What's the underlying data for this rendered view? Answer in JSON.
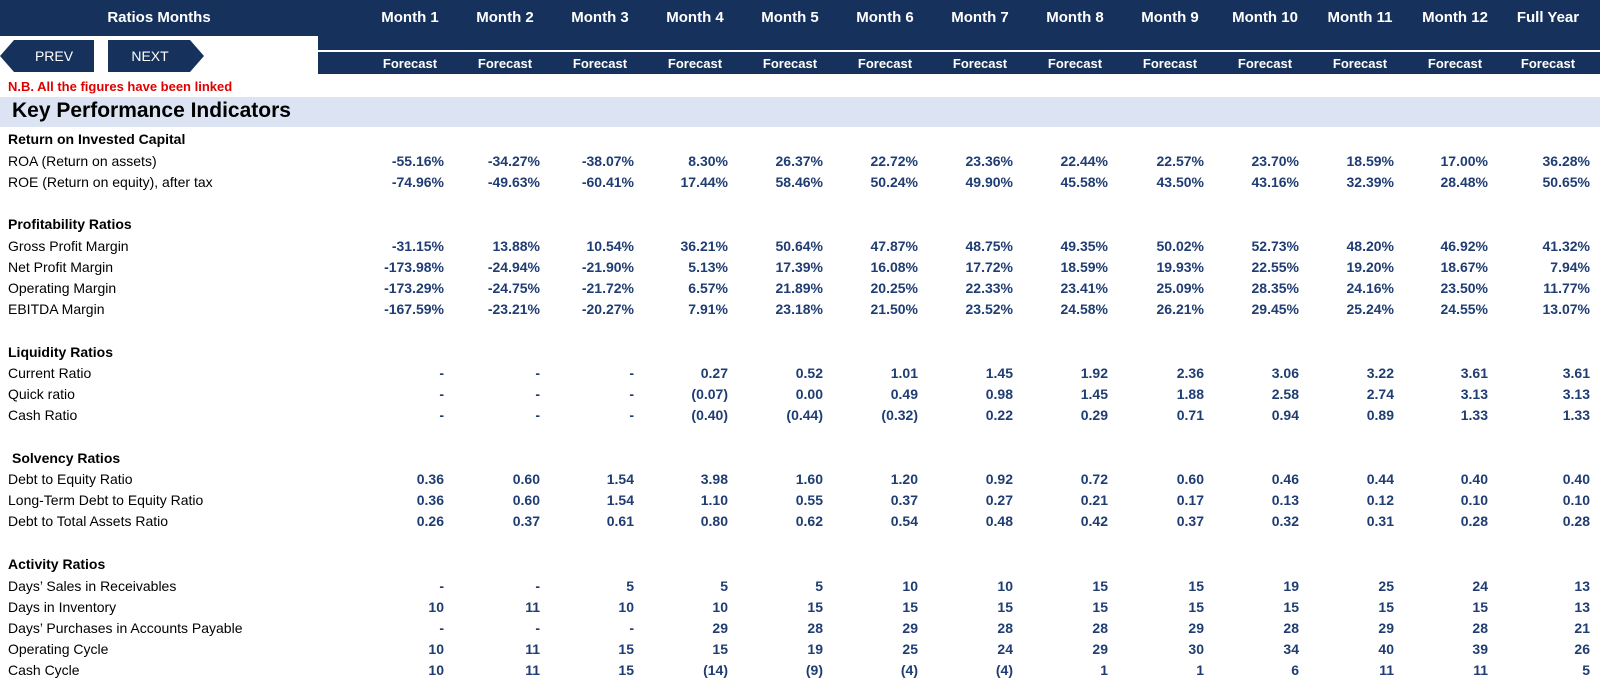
{
  "header": {
    "label": "Ratios Months",
    "columns": [
      "Month 1",
      "Month 2",
      "Month 3",
      "Month 4",
      "Month 5",
      "Month 6",
      "Month 7",
      "Month 8",
      "Month 9",
      "Month 10",
      "Month 11",
      "Month 12",
      "Full Year"
    ],
    "subheaders": [
      "Forecast",
      "Forecast",
      "Forecast",
      "Forecast",
      "Forecast",
      "Forecast",
      "Forecast",
      "Forecast",
      "Forecast",
      "Forecast",
      "Forecast",
      "Forecast",
      "Forecast"
    ]
  },
  "nav": {
    "prev": "PREV",
    "next": "NEXT"
  },
  "note": "N.B. All the figures have been linked",
  "kpi_title": "Key Performance Indicators",
  "sections": {
    "roic": {
      "title": "Return on Invested Capital",
      "rows": [
        {
          "label": "ROA (Return on assets)",
          "values": [
            "-55.16%",
            "-34.27%",
            "-38.07%",
            "8.30%",
            "26.37%",
            "22.72%",
            "23.36%",
            "22.44%",
            "22.57%",
            "23.70%",
            "18.59%",
            "17.00%",
            "36.28%"
          ]
        },
        {
          "label": "ROE (Return on equity), after tax",
          "values": [
            "-74.96%",
            "-49.63%",
            "-60.41%",
            "17.44%",
            "58.46%",
            "50.24%",
            "49.90%",
            "45.58%",
            "43.50%",
            "43.16%",
            "32.39%",
            "28.48%",
            "50.65%"
          ]
        }
      ]
    },
    "profitability": {
      "title": "Profitability Ratios",
      "rows": [
        {
          "label": "Gross Profit Margin",
          "values": [
            "-31.15%",
            "13.88%",
            "10.54%",
            "36.21%",
            "50.64%",
            "47.87%",
            "48.75%",
            "49.35%",
            "50.02%",
            "52.73%",
            "48.20%",
            "46.92%",
            "41.32%"
          ]
        },
        {
          "label": "Net Profit Margin",
          "values": [
            "-173.98%",
            "-24.94%",
            "-21.90%",
            "5.13%",
            "17.39%",
            "16.08%",
            "17.72%",
            "18.59%",
            "19.93%",
            "22.55%",
            "19.20%",
            "18.67%",
            "7.94%"
          ]
        },
        {
          "label": "Operating Margin",
          "values": [
            "-173.29%",
            "-24.75%",
            "-21.72%",
            "6.57%",
            "21.89%",
            "20.25%",
            "22.33%",
            "23.41%",
            "25.09%",
            "28.35%",
            "24.16%",
            "23.50%",
            "11.77%"
          ]
        },
        {
          "label": "EBITDA Margin",
          "values": [
            "-167.59%",
            "-23.21%",
            "-20.27%",
            "7.91%",
            "23.18%",
            "21.50%",
            "23.52%",
            "24.58%",
            "26.21%",
            "29.45%",
            "25.24%",
            "24.55%",
            "13.07%"
          ]
        }
      ]
    },
    "liquidity": {
      "title": "Liquidity Ratios",
      "rows": [
        {
          "label": "Current Ratio",
          "values": [
            "-",
            "-",
            "-",
            "0.27",
            "0.52",
            "1.01",
            "1.45",
            "1.92",
            "2.36",
            "3.06",
            "3.22",
            "3.61",
            "3.61"
          ]
        },
        {
          "label": "Quick ratio",
          "values": [
            "-",
            "-",
            "-",
            "(0.07)",
            "0.00",
            "0.49",
            "0.98",
            "1.45",
            "1.88",
            "2.58",
            "2.74",
            "3.13",
            "3.13"
          ]
        },
        {
          "label": "Cash Ratio",
          "values": [
            "-",
            "-",
            "-",
            "(0.40)",
            "(0.44)",
            "(0.32)",
            "0.22",
            "0.29",
            "0.71",
            "0.94",
            "0.89",
            "1.33",
            "1.33"
          ]
        }
      ]
    },
    "solvency": {
      "title": "Solvency Ratios",
      "rows": [
        {
          "label": "Debt to Equity Ratio",
          "values": [
            "0.36",
            "0.60",
            "1.54",
            "3.98",
            "1.60",
            "1.20",
            "0.92",
            "0.72",
            "0.60",
            "0.46",
            "0.44",
            "0.40",
            "0.40"
          ]
        },
        {
          "label": "Long-Term Debt to Equity Ratio",
          "values": [
            "0.36",
            "0.60",
            "1.54",
            "1.10",
            "0.55",
            "0.37",
            "0.27",
            "0.21",
            "0.17",
            "0.13",
            "0.12",
            "0.10",
            "0.10"
          ]
        },
        {
          "label": "Debt to Total Assets Ratio",
          "values": [
            "0.26",
            "0.37",
            "0.61",
            "0.80",
            "0.62",
            "0.54",
            "0.48",
            "0.42",
            "0.37",
            "0.32",
            "0.31",
            "0.28",
            "0.28"
          ]
        }
      ]
    },
    "activity": {
      "title": "Activity Ratios",
      "rows": [
        {
          "label": "Days’ Sales in Receivables",
          "values": [
            "-",
            "-",
            "5",
            "5",
            "5",
            "10",
            "10",
            "15",
            "15",
            "19",
            "25",
            "24",
            "13"
          ]
        },
        {
          "label": "Days in Inventory",
          "values": [
            "10",
            "11",
            "10",
            "10",
            "15",
            "15",
            "15",
            "15",
            "15",
            "15",
            "15",
            "15",
            "13"
          ]
        },
        {
          "label": "Days’ Purchases in Accounts Payable",
          "values": [
            "-",
            "-",
            "-",
            "29",
            "28",
            "29",
            "28",
            "28",
            "29",
            "28",
            "29",
            "28",
            "21"
          ]
        },
        {
          "label": "Operating Cycle",
          "values": [
            "10",
            "11",
            "15",
            "15",
            "19",
            "25",
            "24",
            "29",
            "30",
            "34",
            "40",
            "39",
            "26"
          ]
        },
        {
          "label": "Cash Cycle",
          "values": [
            "10",
            "11",
            "15",
            "(14)",
            "(9)",
            "(4)",
            "(4)",
            "1",
            "1",
            "6",
            "11",
            "11",
            "5"
          ]
        }
      ]
    }
  }
}
